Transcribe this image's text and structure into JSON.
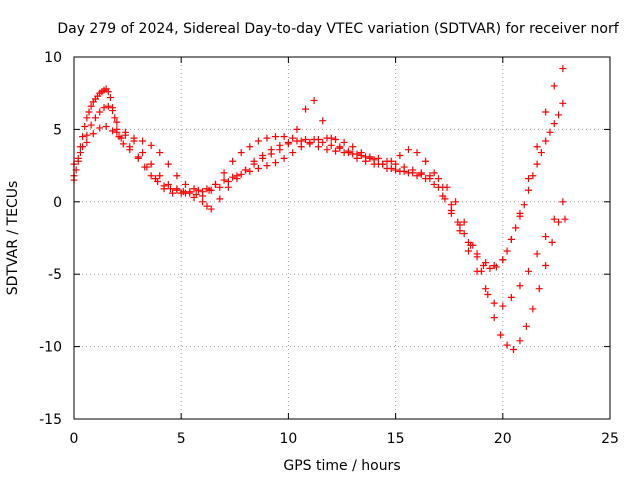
{
  "chart_data": {
    "type": "scatter",
    "title": "Day 279 of 2024, Sidereal Day-to-day VTEC variation (SDTVAR) for receiver norf",
    "xlabel": "GPS time / hours",
    "ylabel": "SDTVAR / TECUs",
    "xlim": [
      0,
      25
    ],
    "ylim": [
      -15,
      10
    ],
    "x_ticks": [
      0,
      5,
      10,
      15,
      20,
      25
    ],
    "x_tick_labels": [
      "0",
      "5",
      "10",
      "15",
      "20",
      "25"
    ],
    "y_ticks": [
      -15,
      -10,
      -5,
      0,
      5,
      10
    ],
    "y_tick_labels": [
      "-15",
      "-10",
      "-5",
      "0",
      "5",
      "10"
    ],
    "grid": true,
    "marker": "plus",
    "marker_color": "#ff0000",
    "series": [
      {
        "x": [
          0.0,
          0.1,
          0.2,
          0.3,
          0.4,
          0.5,
          0.6,
          0.7,
          0.8,
          0.9,
          1.0,
          1.1,
          1.2,
          1.3,
          1.4,
          1.5,
          1.6,
          1.7,
          1.8,
          1.9,
          2.0,
          2.1,
          2.3,
          2.6,
          3.0,
          3.3,
          3.6,
          3.9,
          4.2,
          4.5,
          4.8,
          5.1,
          5.4,
          5.7,
          6.0,
          6.3,
          6.6,
          7.0,
          7.4,
          7.8,
          8.2,
          8.6,
          9.0,
          9.4,
          9.8,
          10.2,
          10.6,
          11.0,
          11.4,
          11.8,
          12.2,
          12.6,
          13.0,
          13.4,
          13.8,
          14.2,
          14.6,
          15.0,
          15.4,
          15.8,
          16.2,
          16.6,
          17.0,
          17.3,
          17.6,
          17.9,
          18.2,
          18.5,
          18.8,
          19.1,
          19.4,
          19.7,
          20.0,
          20.2,
          20.4,
          20.6,
          20.8,
          21.0,
          21.2,
          21.4,
          21.6,
          21.8,
          22.0,
          22.2,
          22.4,
          22.6,
          22.8
        ],
        "y": [
          1.5,
          2.2,
          3.0,
          3.8,
          4.5,
          5.2,
          5.8,
          6.2,
          6.6,
          6.9,
          7.1,
          7.3,
          7.5,
          7.6,
          7.7,
          7.8,
          7.6,
          7.2,
          6.5,
          5.8,
          5.0,
          4.5,
          4.0,
          3.6,
          3.0,
          2.4,
          1.8,
          1.4,
          1.1,
          0.9,
          0.8,
          0.7,
          0.6,
          0.5,
          0.4,
          0.8,
          1.2,
          2.0,
          2.8,
          3.4,
          3.8,
          4.2,
          4.4,
          4.5,
          4.5,
          4.4,
          4.2,
          4.0,
          3.8,
          3.6,
          3.5,
          3.4,
          3.3,
          3.2,
          3.1,
          3.0,
          2.8,
          2.6,
          2.4,
          2.2,
          2.0,
          1.6,
          1.0,
          0.2,
          -0.6,
          -1.4,
          -2.2,
          -3.0,
          -3.8,
          -4.4,
          -4.6,
          -4.5,
          -4.0,
          -3.4,
          -2.6,
          -1.8,
          -1.0,
          -0.2,
          0.8,
          1.8,
          2.6,
          3.4,
          4.2,
          4.8,
          5.4,
          6.0,
          6.8
        ]
      },
      {
        "x": [
          0.0,
          0.2,
          0.4,
          0.6,
          0.8,
          1.0,
          1.2,
          1.4,
          1.6,
          1.8,
          2.0,
          2.4,
          2.8,
          3.2,
          3.6,
          4.0,
          4.4,
          4.8,
          5.2,
          5.6,
          6.0,
          6.2,
          6.4,
          6.8,
          7.2,
          7.6,
          8.0,
          8.4,
          8.8,
          9.2,
          9.6,
          10.0,
          10.4,
          10.8,
          11.2,
          11.6,
          12.0,
          12.4,
          12.8,
          13.2,
          13.6,
          14.0,
          14.4,
          14.8,
          15.2,
          15.6,
          16.0,
          16.4,
          16.8,
          17.2,
          17.6,
          18.0,
          18.4,
          18.8,
          19.2,
          19.6,
          20.0,
          20.4,
          20.8,
          21.2,
          21.6,
          22.0,
          22.4,
          22.8
        ],
        "y": [
          1.8,
          2.8,
          3.8,
          4.6,
          5.3,
          5.8,
          6.2,
          6.5,
          6.6,
          6.3,
          5.5,
          4.8,
          4.2,
          3.4,
          2.6,
          1.8,
          1.2,
          0.9,
          0.6,
          0.3,
          0.0,
          -0.3,
          -0.5,
          0.2,
          1.0,
          1.6,
          2.2,
          2.8,
          3.2,
          3.6,
          3.9,
          4.1,
          4.2,
          4.3,
          4.3,
          4.1,
          3.9,
          3.7,
          3.5,
          3.3,
          3.1,
          2.9,
          2.6,
          2.3,
          2.1,
          2.0,
          1.8,
          1.6,
          1.2,
          0.4,
          -0.8,
          -2.0,
          -3.4,
          -4.8,
          -6.0,
          -7.0,
          -7.2,
          -6.6,
          -5.8,
          -4.8,
          -3.6,
          -2.4,
          -1.2,
          0.0
        ]
      },
      {
        "x": [
          0.0,
          0.3,
          0.6,
          0.9,
          1.2,
          1.5,
          1.8,
          2.2,
          2.6,
          3.0,
          3.4,
          3.8,
          4.2,
          4.6,
          5.0,
          5.4,
          5.8,
          6.2,
          6.6,
          7.0,
          7.4,
          7.8,
          8.2,
          8.6,
          9.0,
          9.4,
          9.8,
          10.2,
          10.6,
          11.0,
          11.4,
          11.8,
          12.2,
          12.6,
          13.0,
          13.4,
          13.8,
          14.2,
          14.6,
          15.0,
          15.4,
          15.8,
          16.2,
          16.6,
          17.0,
          17.4,
          17.8,
          18.2,
          18.6,
          19.0,
          19.3,
          19.6,
          19.9,
          20.2,
          20.5,
          20.8,
          21.1,
          21.4,
          21.7,
          22.0,
          22.3,
          22.6,
          22.9
        ],
        "y": [
          2.6,
          3.4,
          4.1,
          4.7,
          5.1,
          5.2,
          4.9,
          4.4,
          3.8,
          3.1,
          2.4,
          1.6,
          0.9,
          0.6,
          0.6,
          0.7,
          0.8,
          0.9,
          1.2,
          1.5,
          1.7,
          1.9,
          2.1,
          2.3,
          2.5,
          2.7,
          3.0,
          3.4,
          3.8,
          4.1,
          4.3,
          4.4,
          4.3,
          4.1,
          3.8,
          3.4,
          3.0,
          2.6,
          2.3,
          2.2,
          2.1,
          2.0,
          1.9,
          1.8,
          1.6,
          1.0,
          0.0,
          -1.4,
          -3.0,
          -4.8,
          -6.4,
          -8.0,
          -9.2,
          -9.9,
          -10.2,
          -9.6,
          -8.6,
          -7.4,
          -6.0,
          -4.4,
          -2.8,
          -1.4,
          -1.2
        ]
      },
      {
        "x": [
          2.0,
          2.4,
          2.8,
          3.2,
          3.6,
          4.0,
          4.4,
          4.8,
          5.2,
          5.6,
          6.0,
          6.4,
          6.8,
          7.2,
          7.6,
          8.0,
          8.4,
          8.8,
          9.2,
          9.6,
          10.0,
          10.4,
          10.8,
          11.2,
          11.6,
          12.0,
          12.4,
          12.8,
          13.2,
          13.6,
          14.0,
          14.4,
          14.8,
          15.2,
          15.6,
          16.0,
          16.4,
          16.8,
          17.2,
          17.6,
          18.0,
          18.4,
          18.8,
          19.2,
          19.6,
          20.0,
          20.4,
          20.8,
          21.2,
          21.6,
          22.0,
          22.4,
          22.8
        ],
        "y": [
          4.8,
          4.6,
          4.4,
          4.2,
          3.9,
          3.4,
          2.6,
          1.8,
          1.2,
          0.9,
          0.7,
          0.8,
          1.0,
          1.4,
          1.8,
          2.2,
          2.6,
          3.0,
          3.3,
          3.6,
          4.0,
          5.0,
          6.4,
          7.0,
          5.6,
          4.4,
          3.8,
          3.4,
          3.0,
          2.8,
          2.6,
          2.6,
          2.8,
          3.2,
          3.6,
          3.4,
          2.8,
          2.0,
          1.0,
          -0.2,
          -1.6,
          -2.8,
          -3.6,
          -4.2,
          -4.4,
          -4.0,
          -2.6,
          -0.8,
          1.6,
          3.8,
          6.2,
          8.0,
          9.2
        ]
      }
    ]
  }
}
